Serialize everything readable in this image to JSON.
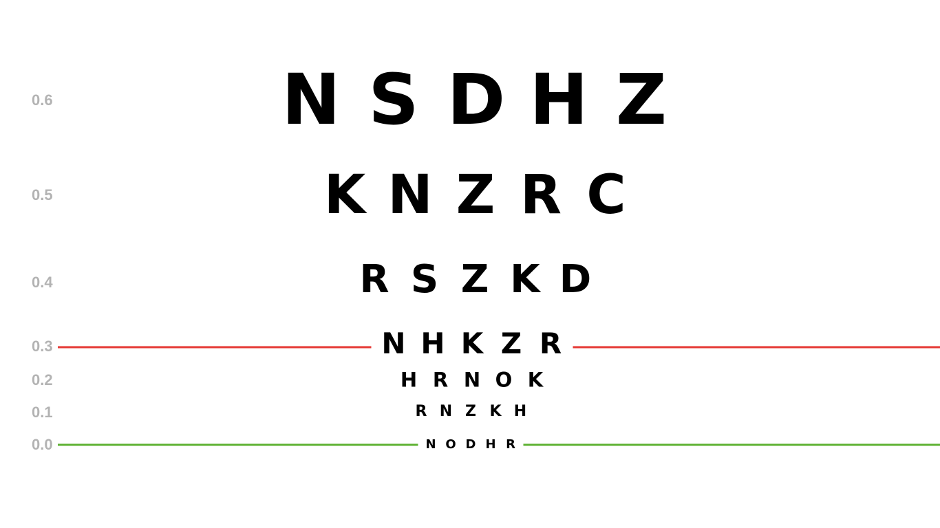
{
  "rows": [
    {
      "acuity": "0.6",
      "letters": [
        "N",
        "S",
        "D",
        "H",
        "Z"
      ]
    },
    {
      "acuity": "0.5",
      "letters": [
        "K",
        "N",
        "Z",
        "R",
        "C"
      ]
    },
    {
      "acuity": "0.4",
      "letters": [
        "R",
        "S",
        "Z",
        "K",
        "D"
      ]
    },
    {
      "acuity": "0.3",
      "letters": [
        "N",
        "H",
        "K",
        "Z",
        "R"
      ]
    },
    {
      "acuity": "0.2",
      "letters": [
        "H",
        "R",
        "N",
        "O",
        "K"
      ]
    },
    {
      "acuity": "0.1",
      "letters": [
        "R",
        "N",
        "Z",
        "K",
        "H"
      ]
    },
    {
      "acuity": "0.0",
      "letters": [
        "N",
        "O",
        "D",
        "H",
        "R"
      ]
    }
  ],
  "reference_lines": [
    {
      "acuity": "0.3",
      "color": "#e53935"
    },
    {
      "acuity": "0.0",
      "color": "#5fb233"
    }
  ]
}
